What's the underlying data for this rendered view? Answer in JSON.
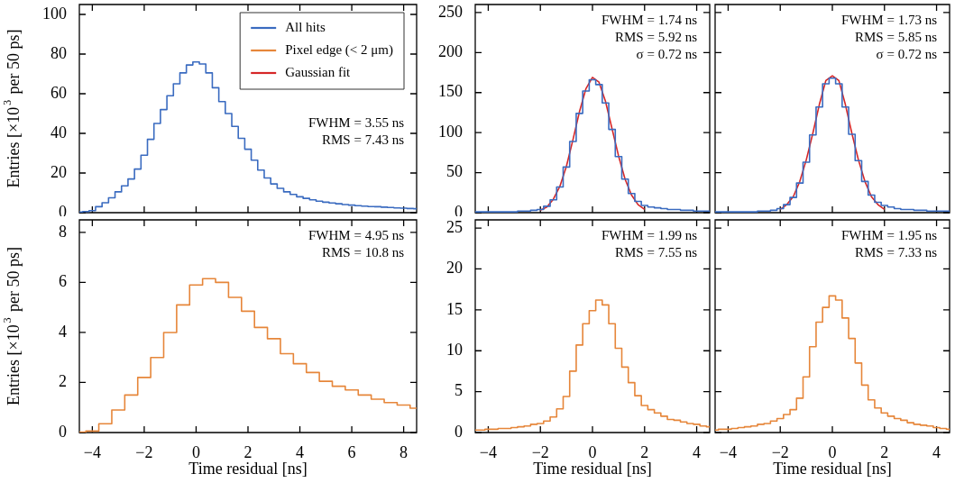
{
  "chart_data": [
    {
      "type": "step",
      "ylabel": "Entries [×10$^{3}$ per 50 ps]",
      "xlim": [
        -4.5,
        8.5
      ],
      "xticks": [
        -4,
        -2,
        0,
        2,
        4,
        6,
        8
      ],
      "ylim": [
        0,
        105
      ],
      "yticks": [
        0,
        20,
        40,
        60,
        80,
        100
      ],
      "tick_labels": "y",
      "legend": "top right",
      "annotations": [
        "FWHM = 3.55 ns",
        "RMS = 7.43 ns"
      ],
      "series": [
        {
          "name": "All hits",
          "color": "#3a6bc0",
          "x": [
            -4.5,
            -4.25,
            -4,
            -3.75,
            -3.5,
            -3.25,
            -3,
            -2.75,
            -2.5,
            -2.25,
            -2,
            -1.75,
            -1.5,
            -1.25,
            -1,
            -0.75,
            -0.5,
            -0.25,
            0,
            0.25,
            0.5,
            0.75,
            1,
            1.25,
            1.5,
            1.75,
            2,
            2.25,
            2.5,
            2.75,
            3,
            3.25,
            3.5,
            3.75,
            4,
            4.25,
            4.5,
            4.75,
            5,
            5.25,
            5.5,
            5.75,
            6,
            6.25,
            6.5,
            6.75,
            7,
            7.25,
            7.5,
            7.75,
            8,
            8.25,
            8.5
          ],
          "values": [
            0.3,
            0.6,
            1.0,
            3.0,
            5,
            7.5,
            10.5,
            13.5,
            17,
            22,
            29,
            37,
            45,
            52,
            59,
            65,
            70.5,
            74.5,
            76,
            75,
            70.5,
            63,
            56,
            50,
            43.5,
            37.5,
            32,
            26.5,
            21.5,
            17.5,
            14.5,
            12.3,
            10.5,
            9.2,
            8,
            7.2,
            6.5,
            5.8,
            5.3,
            4.9,
            4.5,
            4.1,
            3.8,
            3.5,
            3.3,
            3.1,
            3.0,
            2.8,
            2.6,
            2.4,
            2.3,
            2.1,
            2.0
          ]
        }
      ]
    },
    {
      "type": "step",
      "xlabel": "Time residual [ns]",
      "ylabel": "Entries [×10$^{3}$ per 50 ps]",
      "xlim": [
        -4.5,
        8.5
      ],
      "xticks": [
        -4,
        -2,
        0,
        2,
        4,
        6,
        8
      ],
      "ylim": [
        0,
        8.5
      ],
      "yticks": [
        0,
        2,
        4,
        6,
        8
      ],
      "annotations": [
        "FWHM = 4.95 ns",
        "RMS = 10.8 ns"
      ],
      "series": [
        {
          "name": "Pixel edge (< 2 μm)",
          "color": "#e6863a",
          "x": [
            -4.5,
            -4,
            -3.5,
            -3,
            -2.5,
            -2,
            -1.5,
            -1,
            -0.5,
            0,
            0.5,
            1,
            1.5,
            2,
            2.5,
            3,
            3.5,
            4,
            4.5,
            5,
            5.5,
            6,
            6.5,
            7,
            7.5,
            8,
            8.5
          ],
          "values": [
            0.02,
            0.06,
            0.35,
            0.9,
            1.5,
            2.2,
            3.0,
            4.0,
            5.1,
            5.9,
            6.15,
            6.0,
            5.4,
            4.85,
            4.2,
            3.75,
            3.15,
            2.75,
            2.4,
            2.05,
            1.85,
            1.7,
            1.5,
            1.33,
            1.2,
            1.1,
            0.97
          ]
        }
      ]
    },
    {
      "type": "step",
      "xlim": [
        -4.5,
        4.5
      ],
      "xticks": [
        -4,
        -2,
        0,
        2,
        4
      ],
      "ylim": [
        0,
        260
      ],
      "yticks": [
        0,
        50,
        100,
        150,
        200,
        250
      ],
      "tick_labels": "y",
      "annotations": [
        "FWHM = 1.74 ns",
        "RMS = 5.92 ns",
        "σ = 0.72 ns"
      ],
      "series": [
        {
          "color": "#3a6bc0",
          "x": [
            -4.5,
            -4.25,
            -4,
            -3.75,
            -3.5,
            -3.25,
            -3,
            -2.75,
            -2.5,
            -2.25,
            -2,
            -1.75,
            -1.5,
            -1.25,
            -1,
            -0.75,
            -0.5,
            -0.25,
            0,
            0.25,
            0.5,
            0.75,
            1,
            1.25,
            1.5,
            1.75,
            2,
            2.25,
            2.5,
            2.75,
            3,
            3.25,
            3.5,
            3.75,
            4,
            4.25,
            4.5
          ],
          "values": [
            1,
            1,
            1,
            1,
            1,
            1,
            1,
            2,
            2,
            3,
            4,
            8,
            16,
            32,
            57,
            89,
            124,
            152,
            166,
            160,
            137,
            104,
            70,
            42,
            24,
            14,
            9,
            7,
            6,
            5,
            4,
            4,
            3,
            3,
            2,
            2,
            2
          ]
        },
        {
          "name": "Gaussian fit",
          "type": "line",
          "color": "#d62728",
          "x": [
            -2,
            -1.75,
            -1.5,
            -1.25,
            -1,
            -0.75,
            -0.5,
            -0.25,
            0,
            0.25,
            0.5,
            0.75,
            1,
            1.25,
            1.5,
            1.75,
            2
          ],
          "values": [
            3,
            7,
            17,
            33,
            58,
            91,
            126,
            155,
            169,
            163,
            139,
            105,
            71,
            42,
            22,
            10,
            4
          ]
        }
      ]
    },
    {
      "type": "step",
      "xlim": [
        -4.5,
        4.5
      ],
      "xticks": [
        -4,
        -2,
        0,
        2,
        4
      ],
      "ylim": [
        0,
        260
      ],
      "yticks": [
        0,
        50,
        100,
        150,
        200,
        250
      ],
      "tick_labels": false,
      "annotations": [
        "FWHM = 1.73 ns",
        "RMS = 5.85 ns",
        "σ = 0.72 ns"
      ],
      "series": [
        {
          "color": "#3a6bc0",
          "x": [
            -4.5,
            -4.25,
            -4,
            -3.75,
            -3.5,
            -3.25,
            -3,
            -2.75,
            -2.5,
            -2.25,
            -2,
            -1.75,
            -1.5,
            -1.25,
            -1,
            -0.75,
            -0.5,
            -0.25,
            0,
            0.25,
            0.5,
            0.75,
            1,
            1.25,
            1.5,
            1.75,
            2,
            2.25,
            2.5,
            2.75,
            3,
            3.25,
            3.5,
            3.75,
            4,
            4.25,
            4.5
          ],
          "values": [
            1,
            1,
            1,
            1,
            1,
            1,
            1,
            2,
            2,
            3,
            5,
            10,
            19,
            37,
            63,
            97,
            132,
            161,
            168,
            161,
            132,
            98,
            65,
            39,
            22,
            13,
            9,
            7,
            5,
            4,
            4,
            3,
            3,
            2,
            2,
            2,
            2
          ]
        },
        {
          "type": "line",
          "color": "#d62728",
          "x": [
            -2,
            -1.75,
            -1.5,
            -1.25,
            -1,
            -0.75,
            -0.5,
            -0.25,
            0,
            0.25,
            0.5,
            0.75,
            1,
            1.25,
            1.5,
            1.75,
            2
          ],
          "values": [
            4,
            10,
            20,
            39,
            66,
            99,
            135,
            165,
            171,
            165,
            135,
            99,
            66,
            39,
            20,
            10,
            4
          ]
        }
      ]
    },
    {
      "type": "step",
      "xlabel": "Time residual [ns]",
      "xlim": [
        -4.5,
        4.5
      ],
      "xticks": [
        -4,
        -2,
        0,
        2,
        4
      ],
      "ylim": [
        0,
        26
      ],
      "yticks": [
        0,
        5,
        10,
        15,
        20,
        25
      ],
      "annotations": [
        "FWHM = 1.99 ns",
        "RMS = 7.55 ns"
      ],
      "series": [
        {
          "color": "#e6863a",
          "x": [
            -4.5,
            -4.25,
            -4,
            -3.75,
            -3.5,
            -3.25,
            -3,
            -2.75,
            -2.5,
            -2.25,
            -2,
            -1.75,
            -1.5,
            -1.25,
            -1,
            -0.75,
            -0.5,
            -0.25,
            0,
            0.25,
            0.5,
            0.75,
            1,
            1.25,
            1.5,
            1.75,
            2,
            2.25,
            2.5,
            2.75,
            3,
            3.25,
            3.5,
            3.75,
            4,
            4.25,
            4.5
          ],
          "values": [
            0.3,
            0.3,
            0.4,
            0.4,
            0.5,
            0.5,
            0.6,
            0.7,
            0.8,
            1.0,
            1.1,
            1.4,
            1.9,
            2.9,
            4.4,
            7.5,
            10.7,
            13.3,
            14.9,
            16.2,
            15.6,
            13.3,
            10.3,
            8,
            6.1,
            4.5,
            3.3,
            2.8,
            2.4,
            2,
            1.6,
            1.5,
            1.3,
            1.1,
            1.0,
            0.8,
            0.7
          ]
        }
      ]
    },
    {
      "type": "step",
      "xlabel": "Time residual [ns]",
      "xlim": [
        -4.5,
        4.5
      ],
      "xticks": [
        -4,
        -2,
        0,
        2,
        4
      ],
      "ylim": [
        0,
        26
      ],
      "yticks": [
        0,
        5,
        10,
        15,
        20,
        25
      ],
      "tick_labels": "x",
      "annotations": [
        "FWHM = 1.95 ns",
        "RMS = 7.33 ns"
      ],
      "series": [
        {
          "color": "#e6863a",
          "x": [
            -4.5,
            -4.25,
            -4,
            -3.75,
            -3.5,
            -3.25,
            -3,
            -2.75,
            -2.5,
            -2.25,
            -2,
            -1.75,
            -1.5,
            -1.25,
            -1,
            -0.75,
            -0.5,
            -0.25,
            0,
            0.25,
            0.5,
            0.75,
            1,
            1.25,
            1.5,
            1.75,
            2,
            2.25,
            2.5,
            2.75,
            3,
            3.25,
            3.5,
            3.75,
            4,
            4.25,
            4.5
          ],
          "values": [
            0.3,
            0.4,
            0.4,
            0.5,
            0.6,
            0.7,
            0.8,
            1.0,
            1.1,
            1.4,
            1.7,
            2.2,
            2.8,
            4.2,
            6.8,
            10.5,
            13.5,
            15.3,
            16.7,
            16.2,
            14,
            11.5,
            8.5,
            5.8,
            4,
            3,
            2.4,
            2,
            1.7,
            1.5,
            1.2,
            1,
            0.9,
            0.8,
            0.6,
            0.5,
            0.4
          ]
        }
      ]
    }
  ]
}
